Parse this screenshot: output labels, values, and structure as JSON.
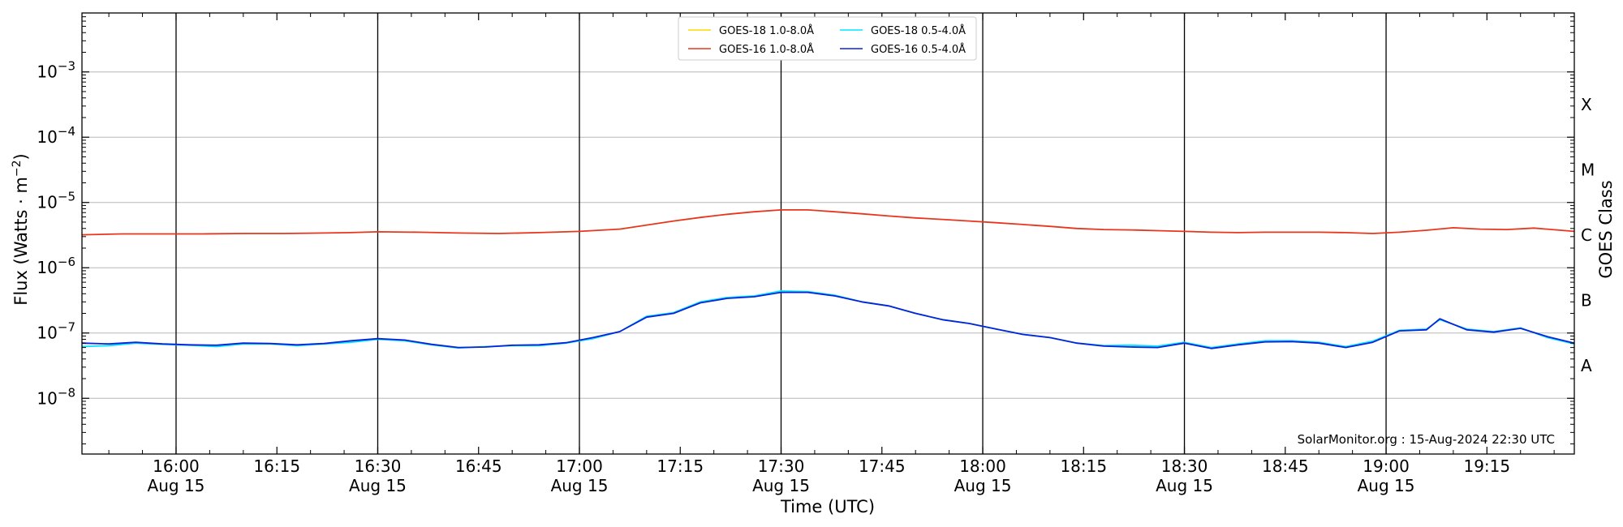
{
  "chart_data": {
    "type": "line",
    "xlabel": "Time (UTC)",
    "ylabel": "Flux (Watts · m",
    "ylabel_sup": "−2",
    "ylabel_close": ")",
    "y2label": "GOES Class",
    "credit": "SolarMonitor.org : 15-Aug-2024 22:30 UTC",
    "y_scale": "log",
    "ylim": [
      1.4e-09,
      0.008
    ],
    "xlim_minutes_from_midnight": [
      946,
      1168
    ],
    "grid": true,
    "legend_placement": "top-center",
    "y_ticks": [
      {
        "value": 1e-08,
        "base": "10",
        "exp": "−8"
      },
      {
        "value": 1e-07,
        "base": "10",
        "exp": "−7"
      },
      {
        "value": 1e-06,
        "base": "10",
        "exp": "−6"
      },
      {
        "value": 1e-05,
        "base": "10",
        "exp": "−5"
      },
      {
        "value": 0.0001,
        "base": "10",
        "exp": "−4"
      },
      {
        "value": 0.001,
        "base": "10",
        "exp": "−3"
      }
    ],
    "class_labels": [
      {
        "label": "A",
        "value": 1e-08
      },
      {
        "label": "B",
        "value": 1e-07
      },
      {
        "label": "C",
        "value": 1e-06
      },
      {
        "label": "M",
        "value": 1e-05
      },
      {
        "label": "X",
        "value": 0.0001
      }
    ],
    "x_ticks": [
      {
        "time": "16:00",
        "minutes": 960,
        "date": "Aug 15",
        "major": true
      },
      {
        "time": "16:15",
        "minutes": 975,
        "date": "",
        "major": false
      },
      {
        "time": "16:30",
        "minutes": 990,
        "date": "Aug 15",
        "major": true
      },
      {
        "time": "16:45",
        "minutes": 1005,
        "date": "",
        "major": false
      },
      {
        "time": "17:00",
        "minutes": 1020,
        "date": "Aug 15",
        "major": true
      },
      {
        "time": "17:15",
        "minutes": 1035,
        "date": "",
        "major": false
      },
      {
        "time": "17:30",
        "minutes": 1050,
        "date": "Aug 15",
        "major": true
      },
      {
        "time": "17:45",
        "minutes": 1065,
        "date": "",
        "major": false
      },
      {
        "time": "18:00",
        "minutes": 1080,
        "date": "Aug 15",
        "major": true
      },
      {
        "time": "18:15",
        "minutes": 1095,
        "date": "",
        "major": false
      },
      {
        "time": "18:30",
        "minutes": 1110,
        "date": "Aug 15",
        "major": true
      },
      {
        "time": "18:45",
        "minutes": 1125,
        "date": "",
        "major": false
      },
      {
        "time": "19:00",
        "minutes": 1140,
        "date": "Aug 15",
        "major": true
      },
      {
        "time": "19:15",
        "minutes": 1155,
        "date": "",
        "major": false
      }
    ],
    "series": [
      {
        "name": "GOES-18 1.0-8.0Å",
        "color": "#ffd700",
        "legend_only": true,
        "points": []
      },
      {
        "name": "GOES-18 0.5-4.0Å",
        "color": "#00e5ff",
        "points": [
          [
            946,
            6.2e-08
          ],
          [
            950,
            6.4e-08
          ],
          [
            954,
            7e-08
          ],
          [
            958,
            6.7e-08
          ],
          [
            962,
            6.5e-08
          ],
          [
            966,
            6.2e-08
          ],
          [
            970,
            6.8e-08
          ],
          [
            974,
            6.8e-08
          ],
          [
            978,
            6.4e-08
          ],
          [
            982,
            6.8e-08
          ],
          [
            986,
            7.2e-08
          ],
          [
            990,
            8e-08
          ],
          [
            994,
            7.6e-08
          ],
          [
            998,
            6.6e-08
          ],
          [
            1002,
            5.9e-08
          ],
          [
            1006,
            6.2e-08
          ],
          [
            1010,
            6.4e-08
          ],
          [
            1014,
            6.4e-08
          ],
          [
            1018,
            7e-08
          ],
          [
            1022,
            8.2e-08
          ],
          [
            1026,
            1.05e-07
          ],
          [
            1030,
            1.8e-07
          ],
          [
            1034,
            2.05e-07
          ],
          [
            1038,
            3e-07
          ],
          [
            1042,
            3.5e-07
          ],
          [
            1046,
            3.7e-07
          ],
          [
            1050,
            4.4e-07
          ],
          [
            1054,
            4.3e-07
          ],
          [
            1058,
            3.8e-07
          ],
          [
            1062,
            3e-07
          ],
          [
            1066,
            2.6e-07
          ],
          [
            1070,
            2e-07
          ],
          [
            1074,
            1.6e-07
          ],
          [
            1078,
            1.4e-07
          ],
          [
            1082,
            1.15e-07
          ],
          [
            1086,
            9.5e-08
          ],
          [
            1090,
            8.5e-08
          ],
          [
            1094,
            7e-08
          ],
          [
            1098,
            6.4e-08
          ],
          [
            1102,
            6.5e-08
          ],
          [
            1106,
            6.3e-08
          ],
          [
            1110,
            7.2e-08
          ],
          [
            1114,
            6e-08
          ],
          [
            1118,
            6.8e-08
          ],
          [
            1122,
            7.6e-08
          ],
          [
            1126,
            7.6e-08
          ],
          [
            1130,
            7.2e-08
          ],
          [
            1134,
            6.2e-08
          ],
          [
            1138,
            7.5e-08
          ],
          [
            1142,
            1.1e-07
          ],
          [
            1146,
            1.15e-07
          ],
          [
            1148,
            1.6e-07
          ],
          [
            1152,
            1.15e-07
          ],
          [
            1156,
            1.05e-07
          ],
          [
            1160,
            1.2e-07
          ],
          [
            1164,
            8.5e-08
          ],
          [
            1168,
            6.8e-08
          ]
        ]
      },
      {
        "name": "GOES-16 1.0-8.0Å",
        "color": "#e8361c",
        "points": [
          [
            946,
            3.2e-06
          ],
          [
            952,
            3.3e-06
          ],
          [
            958,
            3.3e-06
          ],
          [
            964,
            3.3e-06
          ],
          [
            970,
            3.35e-06
          ],
          [
            976,
            3.35e-06
          ],
          [
            982,
            3.4e-06
          ],
          [
            986,
            3.45e-06
          ],
          [
            990,
            3.55e-06
          ],
          [
            996,
            3.5e-06
          ],
          [
            1002,
            3.4e-06
          ],
          [
            1008,
            3.35e-06
          ],
          [
            1014,
            3.45e-06
          ],
          [
            1020,
            3.6e-06
          ],
          [
            1026,
            3.9e-06
          ],
          [
            1030,
            4.5e-06
          ],
          [
            1034,
            5.2e-06
          ],
          [
            1038,
            5.9e-06
          ],
          [
            1042,
            6.6e-06
          ],
          [
            1046,
            7.2e-06
          ],
          [
            1050,
            7.7e-06
          ],
          [
            1054,
            7.7e-06
          ],
          [
            1058,
            7.2e-06
          ],
          [
            1062,
            6.7e-06
          ],
          [
            1066,
            6.2e-06
          ],
          [
            1070,
            5.8e-06
          ],
          [
            1074,
            5.5e-06
          ],
          [
            1078,
            5.2e-06
          ],
          [
            1082,
            4.9e-06
          ],
          [
            1086,
            4.6e-06
          ],
          [
            1090,
            4.3e-06
          ],
          [
            1094,
            4e-06
          ],
          [
            1098,
            3.85e-06
          ],
          [
            1102,
            3.8e-06
          ],
          [
            1106,
            3.7e-06
          ],
          [
            1110,
            3.6e-06
          ],
          [
            1114,
            3.5e-06
          ],
          [
            1118,
            3.45e-06
          ],
          [
            1122,
            3.5e-06
          ],
          [
            1126,
            3.5e-06
          ],
          [
            1130,
            3.5e-06
          ],
          [
            1134,
            3.45e-06
          ],
          [
            1138,
            3.35e-06
          ],
          [
            1142,
            3.5e-06
          ],
          [
            1146,
            3.75e-06
          ],
          [
            1150,
            4.1e-06
          ],
          [
            1154,
            3.9e-06
          ],
          [
            1158,
            3.85e-06
          ],
          [
            1162,
            4.05e-06
          ],
          [
            1168,
            3.6e-06
          ]
        ]
      },
      {
        "name": "GOES-16 0.5-4.0Å",
        "color": "#0a23d8",
        "points": [
          [
            946,
            7e-08
          ],
          [
            950,
            6.8e-08
          ],
          [
            954,
            7.2e-08
          ],
          [
            958,
            6.8e-08
          ],
          [
            962,
            6.6e-08
          ],
          [
            966,
            6.5e-08
          ],
          [
            970,
            7e-08
          ],
          [
            974,
            6.9e-08
          ],
          [
            978,
            6.6e-08
          ],
          [
            982,
            6.9e-08
          ],
          [
            986,
            7.6e-08
          ],
          [
            990,
            8.2e-08
          ],
          [
            994,
            7.8e-08
          ],
          [
            998,
            6.7e-08
          ],
          [
            1002,
            6e-08
          ],
          [
            1006,
            6.1e-08
          ],
          [
            1010,
            6.5e-08
          ],
          [
            1014,
            6.6e-08
          ],
          [
            1018,
            7.1e-08
          ],
          [
            1022,
            8.5e-08
          ],
          [
            1026,
            1.05e-07
          ],
          [
            1030,
            1.75e-07
          ],
          [
            1034,
            2e-07
          ],
          [
            1038,
            2.9e-07
          ],
          [
            1042,
            3.4e-07
          ],
          [
            1046,
            3.6e-07
          ],
          [
            1050,
            4.2e-07
          ],
          [
            1054,
            4.2e-07
          ],
          [
            1058,
            3.7e-07
          ],
          [
            1062,
            3e-07
          ],
          [
            1066,
            2.6e-07
          ],
          [
            1070,
            2e-07
          ],
          [
            1074,
            1.6e-07
          ],
          [
            1078,
            1.4e-07
          ],
          [
            1082,
            1.15e-07
          ],
          [
            1086,
            9.5e-08
          ],
          [
            1090,
            8.5e-08
          ],
          [
            1094,
            7e-08
          ],
          [
            1098,
            6.3e-08
          ],
          [
            1102,
            6.1e-08
          ],
          [
            1106,
            6e-08
          ],
          [
            1110,
            7e-08
          ],
          [
            1114,
            5.8e-08
          ],
          [
            1118,
            6.6e-08
          ],
          [
            1122,
            7.3e-08
          ],
          [
            1126,
            7.4e-08
          ],
          [
            1130,
            7e-08
          ],
          [
            1134,
            6e-08
          ],
          [
            1138,
            7.2e-08
          ],
          [
            1142,
            1.08e-07
          ],
          [
            1146,
            1.12e-07
          ],
          [
            1148,
            1.65e-07
          ],
          [
            1152,
            1.12e-07
          ],
          [
            1156,
            1.03e-07
          ],
          [
            1160,
            1.18e-07
          ],
          [
            1164,
            8.8e-08
          ],
          [
            1168,
            7e-08
          ]
        ]
      }
    ]
  }
}
